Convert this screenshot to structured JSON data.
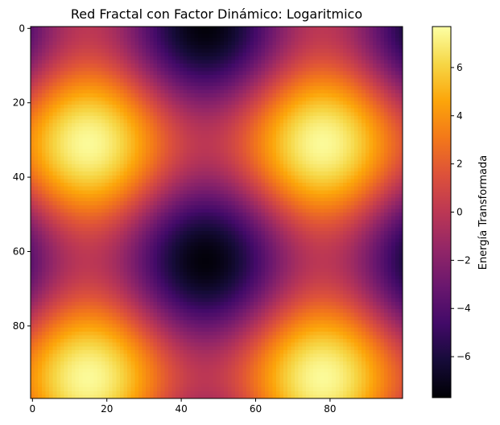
{
  "chart_data": {
    "type": "heatmap",
    "title": "Red Fractal con Factor Dinámico: Logaritmico",
    "xlabel": "",
    "ylabel": "",
    "grid": false,
    "colormap": "inferno",
    "image_size": [
      100,
      100
    ],
    "x_ticks": [
      0,
      20,
      40,
      60,
      80
    ],
    "y_ticks": [
      0,
      20,
      40,
      60,
      80
    ],
    "x_tick_labels": [
      "0",
      "20",
      "40",
      "60",
      "80"
    ],
    "y_tick_labels": [
      "0",
      "20",
      "40",
      "60",
      "80"
    ],
    "colorbar": {
      "label": "Energía Transformada",
      "range": [
        -7.7,
        7.7
      ],
      "ticks": [
        6,
        4,
        2,
        0,
        -2,
        -4,
        -6
      ],
      "tick_labels": [
        "6",
        "4",
        "2",
        "0",
        "−2",
        "−4",
        "−6"
      ]
    },
    "peaks": [
      {
        "x": 15,
        "y": 31,
        "value": 7.5
      },
      {
        "x": 78,
        "y": 31,
        "value": 7.5
      },
      {
        "x": 15,
        "y": 94,
        "value": 7.5
      },
      {
        "x": 78,
        "y": 94,
        "value": 7.5
      }
    ],
    "troughs": [
      {
        "x": 47,
        "y": 0,
        "value": -7.5
      },
      {
        "x": 47,
        "y": 63,
        "value": -7.5
      }
    ]
  }
}
